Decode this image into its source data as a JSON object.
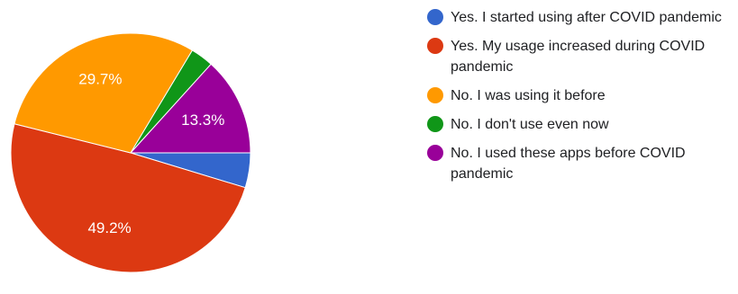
{
  "chart_data": {
    "type": "pie",
    "slices": [
      {
        "label": "Yes. I started using after COVID pandemic",
        "value": 4.7,
        "color": "#3366cc",
        "data_label": ""
      },
      {
        "label": "Yes. My usage increased during COVID pandemic",
        "value": 49.2,
        "color": "#dc3912",
        "data_label": "49.2%"
      },
      {
        "label": "No. I was using it before",
        "value": 29.7,
        "color": "#ff9900",
        "data_label": "29.7%"
      },
      {
        "label": "No. I don't use even now",
        "value": 3.1,
        "color": "#109618",
        "data_label": ""
      },
      {
        "label": "No. I used these apps before COVID pandemic",
        "value": 13.3,
        "color": "#990099",
        "data_label": "13.3%"
      }
    ],
    "start_angle_deg": 90,
    "direction": "clockwise",
    "legend_position": "right"
  }
}
